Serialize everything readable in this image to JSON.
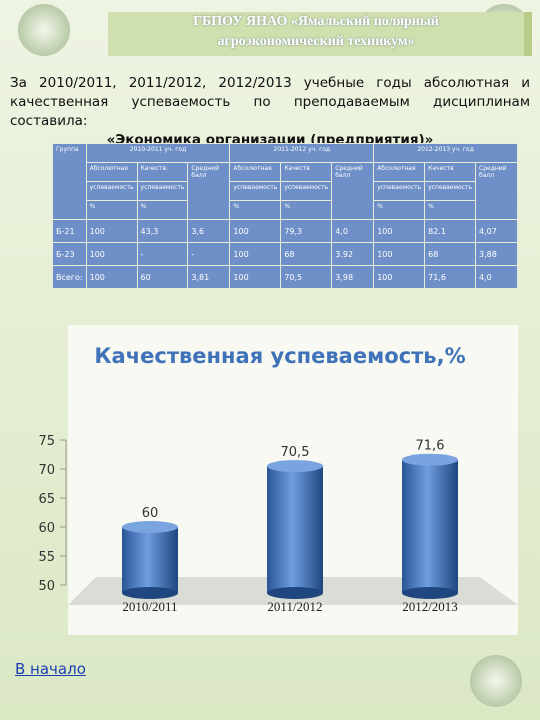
{
  "header": {
    "lines": [
      "ГБПОУ ЯНАО «Ямальский полярный",
      "агроэкономический техникум»"
    ]
  },
  "intro": {
    "text": "За 2010/2011, 2011/2012, 2012/2013 учебные годы абсолютная и качественная успеваемость по преподаваемым дисциплинам составила:",
    "subject": "«Экономика организации (предприятия)»"
  },
  "table": {
    "group_header": "Группа",
    "years": [
      "2010-2011 уч. год",
      "2011-2012 уч. год",
      "2012-2013 уч. год"
    ],
    "subheaders": [
      [
        "Абсолютная",
        "успеваемость",
        "%"
      ],
      [
        "Качеств.",
        "успеваемость",
        "%"
      ],
      [
        "Средний балл"
      ],
      [
        "Абсолютная",
        "успеваемость",
        "%"
      ],
      [
        "Качеств",
        "успеваемость",
        "%"
      ],
      [
        "Средний балл"
      ],
      [
        "Абсолютная",
        "успеваемость",
        "%"
      ],
      [
        "Качеств",
        "успеваемость",
        "%"
      ],
      [
        "Средний балл"
      ]
    ],
    "rows": [
      [
        "Б-21",
        "100",
        "43,3",
        "3,6",
        "100",
        "79,3",
        "4,0",
        "100",
        "82.1",
        "4,07"
      ],
      [
        "Б-23",
        "100",
        "-",
        "-",
        "100",
        "68",
        "3.92",
        "100",
        "68",
        "3,88"
      ],
      [
        "Всего:",
        "100",
        "60",
        "3,81",
        "100",
        "70,5",
        "3,98",
        "100",
        "71,6",
        "4,0"
      ]
    ]
  },
  "chart_data": {
    "type": "bar",
    "title": "Качественная успеваемость,%",
    "categories": [
      "2010/2011",
      "2011/2012",
      "2012/2013"
    ],
    "values": [
      60,
      70.5,
      71.6
    ],
    "value_labels": [
      "60",
      "70,5",
      "71,6"
    ],
    "color": "#3d6fb8",
    "ylim": [
      50,
      75
    ],
    "yticks": [
      50,
      55,
      60,
      65,
      70,
      75
    ]
  },
  "link": {
    "text": "В начало"
  }
}
